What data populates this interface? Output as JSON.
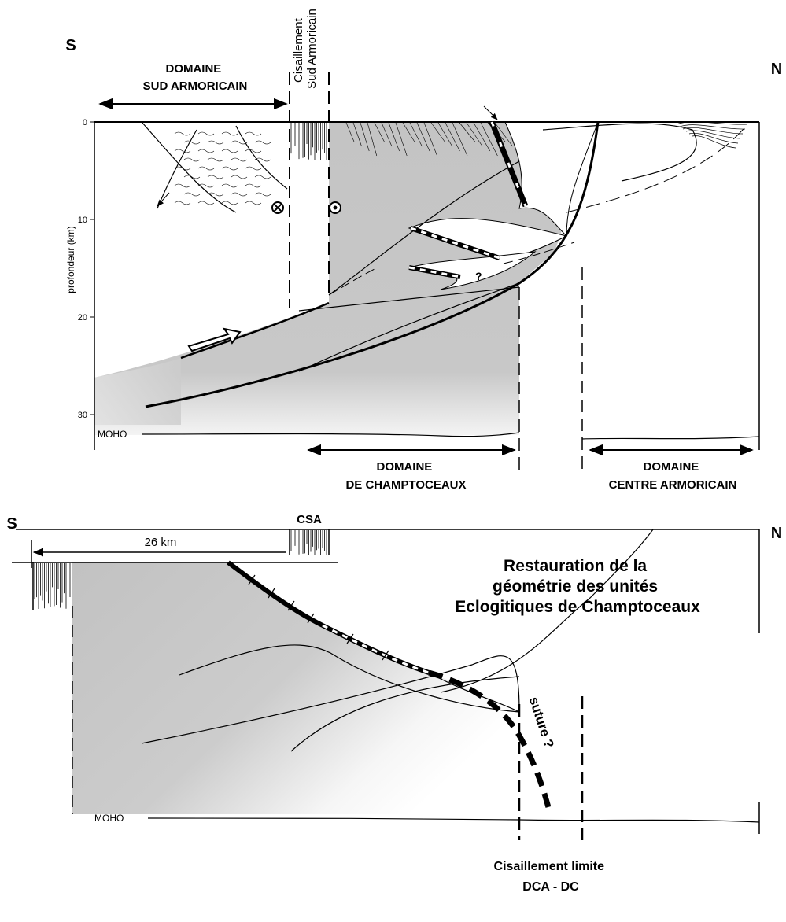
{
  "top_section": {
    "left_label": "S",
    "right_label": "N",
    "domaine_sud": [
      "DOMAINE",
      "SUD ARMORICAIN"
    ],
    "cisaillement": [
      "Cisaillement",
      "Sud Armoricain"
    ],
    "depth_axis": {
      "label": "profondeur (km)",
      "ticks": [
        0,
        10,
        20,
        30
      ]
    },
    "moho": "MOHO",
    "question": "?",
    "domaine_champtoceaux": [
      "DOMAINE",
      "DE CHAMPTOCEAUX"
    ],
    "domaine_centre": [
      "DOMAINE",
      "CENTRE ARMORICAIN"
    ]
  },
  "bottom_section": {
    "left_label": "S",
    "right_label": "N",
    "csa": "CSA",
    "distance": "26 km",
    "restauration": [
      "Restauration de la",
      "géométrie des unités",
      "Eclogitiques de Champtoceaux"
    ],
    "moho": "MOHO",
    "suture": "suture ?",
    "cisaillement_limite": [
      "Cisaillement limite",
      "DCA - DC"
    ]
  }
}
